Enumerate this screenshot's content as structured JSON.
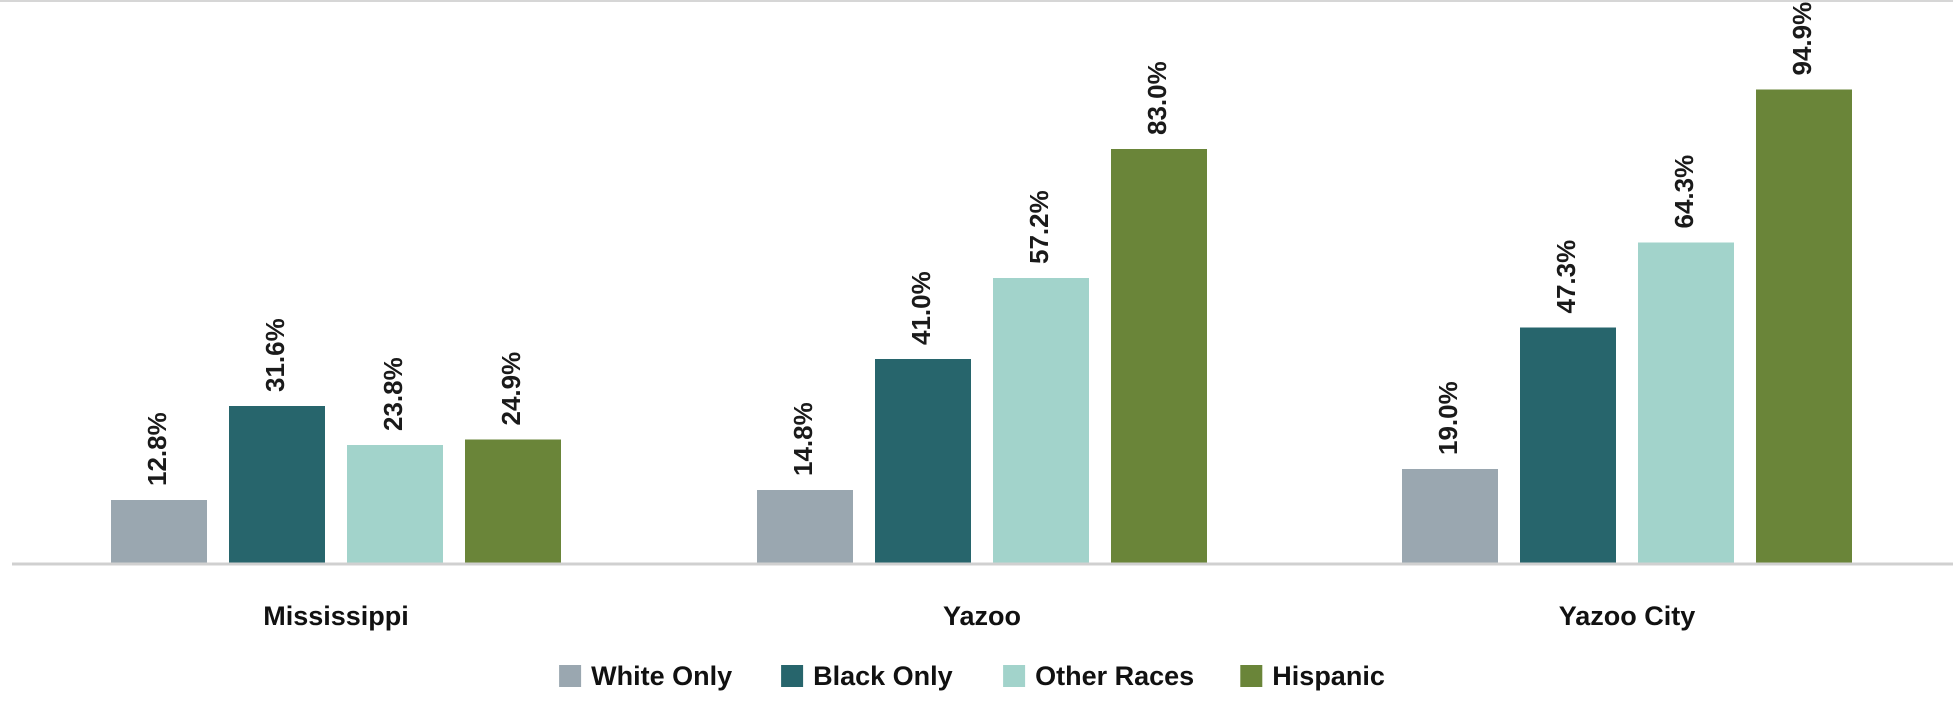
{
  "chart_data": {
    "type": "bar",
    "categories": [
      "Mississippi",
      "Yazoo",
      "Yazoo City"
    ],
    "series": [
      {
        "name": "White Only",
        "color": "#9aa7b0",
        "values": [
          12.8,
          14.8,
          19.0
        ],
        "labels": [
          "12.8%",
          "14.8%",
          "19.0%"
        ]
      },
      {
        "name": "Black Only",
        "color": "#27656c",
        "values": [
          31.6,
          41.0,
          47.3
        ],
        "labels": [
          "31.6%",
          "41.0%",
          "47.3%"
        ]
      },
      {
        "name": "Other Races",
        "color": "#a2d3cb",
        "values": [
          23.8,
          57.2,
          64.3
        ],
        "labels": [
          "23.8%",
          "57.2%",
          "64.3%"
        ]
      },
      {
        "name": "Hispanic",
        "color": "#6a8539",
        "values": [
          24.9,
          83.0,
          94.9
        ],
        "labels": [
          "24.9%",
          "83.0%",
          "94.9%"
        ]
      }
    ],
    "title": "",
    "xlabel": "",
    "ylabel": "",
    "ylim": [
      0,
      100
    ],
    "grid": false,
    "legend": "bottom"
  }
}
